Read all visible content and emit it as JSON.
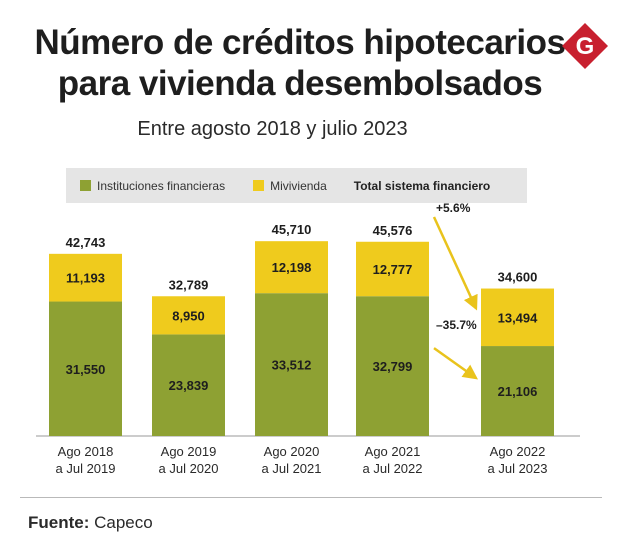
{
  "title": {
    "line1": "Número de créditos hipotecarios",
    "line2": "para vivienda desembolsados"
  },
  "subtitle": "Entre agosto 2018 y julio 2023",
  "logo_letter": "G",
  "legend": {
    "instituciones": "Instituciones financieras",
    "mivivienda": "Mivivienda",
    "total": "Total sistema financiero"
  },
  "colors": {
    "instituciones": "#8ea133",
    "mivivienda": "#efcb1d",
    "logo": "#c8202f",
    "arrow": "#e9c31c"
  },
  "source": {
    "label": "Fuente:",
    "value": "Capeco"
  },
  "chart_data": {
    "type": "bar",
    "stacked": true,
    "title": "Número de créditos hipotecarios para vivienda desembolsados",
    "subtitle": "Entre agosto 2018 y julio 2023",
    "categories": [
      [
        "Ago 2018",
        "a Jul 2019"
      ],
      [
        "Ago 2019",
        "a Jul 2020"
      ],
      [
        "Ago 2020",
        "a Jul 2021"
      ],
      [
        "Ago 2021",
        "a Jul 2022"
      ],
      [
        "Ago 2022",
        "a Jul 2023"
      ]
    ],
    "series": [
      {
        "name": "Instituciones financieras",
        "values": [
          31550,
          23839,
          33512,
          32799,
          21106
        ],
        "labels": [
          "31,550",
          "23,839",
          "33,512",
          "32,799",
          "21,106"
        ]
      },
      {
        "name": "Mivivienda",
        "values": [
          11193,
          8950,
          12198,
          12777,
          13494
        ],
        "labels": [
          "11,193",
          "8,950",
          "12,198",
          "12,777",
          "13,494"
        ]
      }
    ],
    "totals": {
      "name": "Total sistema financiero",
      "values": [
        42743,
        32789,
        45710,
        45576,
        34600
      ],
      "labels": [
        "42,743",
        "32,789",
        "45,710",
        "45,576",
        "34,600"
      ]
    },
    "annotations": [
      {
        "text": "+5.6%",
        "series": "Mivivienda",
        "from": 3,
        "to": 4
      },
      {
        "text": "–35.7%",
        "series": "Instituciones financieras",
        "from": 3,
        "to": 4
      }
    ],
    "ylim": [
      0,
      46000
    ],
    "grid": false,
    "legend": "top"
  }
}
